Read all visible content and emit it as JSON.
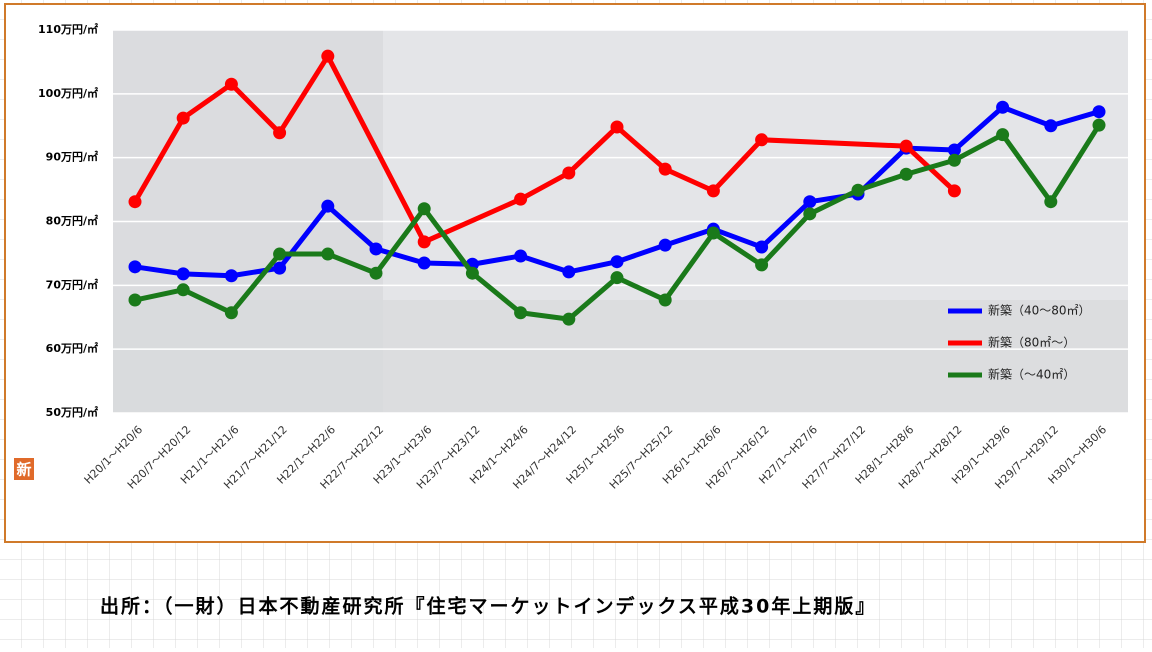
{
  "chart_data": {
    "type": "line",
    "categories": [
      "H20/1～H20/6",
      "H20/7～H20/12",
      "H21/1～H21/6",
      "H21/7～H21/12",
      "H22/1～H22/6",
      "H22/7～H22/12",
      "H23/1～H23/6",
      "H23/7～H23/12",
      "H24/1～H24/6",
      "H24/7～H24/12",
      "H25/1～H25/6",
      "H25/7～H25/12",
      "H26/1～H26/6",
      "H26/7～H26/12",
      "H27/1～H27/6",
      "H27/7～H27/12",
      "H28/1～H28/6",
      "H28/7～H28/12",
      "H29/1～H29/6",
      "H29/7～H29/12",
      "H30/1～H30/6"
    ],
    "series": [
      {
        "name": "新築（40～80㎡）",
        "color": "#0000ff",
        "values": [
          72.9,
          71.8,
          71.5,
          72.7,
          82.4,
          75.7,
          73.5,
          73.3,
          74.6,
          72.1,
          73.7,
          76.3,
          78.8,
          76.0,
          83.1,
          84.3,
          91.5,
          91.2,
          97.9,
          95.0,
          97.2
        ]
      },
      {
        "name": "新築（80㎡～）",
        "color": "#ff0000",
        "values": [
          83.1,
          96.2,
          101.5,
          93.9,
          105.9,
          null,
          76.8,
          null,
          83.5,
          87.6,
          94.8,
          88.2,
          84.8,
          92.8,
          null,
          null,
          91.8,
          84.8,
          null,
          null,
          null
        ]
      },
      {
        "name": "新築（～40㎡）",
        "color": "#1a7a1a",
        "values": [
          67.7,
          69.3,
          65.7,
          74.9,
          74.9,
          71.9,
          82.0,
          71.9,
          65.7,
          64.7,
          71.2,
          67.7,
          78.2,
          73.2,
          81.2,
          84.9,
          87.4,
          89.6,
          93.6,
          83.1,
          95.1
        ]
      }
    ],
    "ylim": [
      50,
      110
    ],
    "yticks": [
      {
        "value": 50,
        "label": "50万円/㎡"
      },
      {
        "value": 60,
        "label": "60万円/㎡"
      },
      {
        "value": 70,
        "label": "70万円/㎡"
      },
      {
        "value": 80,
        "label": "80万円/㎡"
      },
      {
        "value": 90,
        "label": "90万円/㎡"
      },
      {
        "value": 100,
        "label": "100万円/㎡"
      },
      {
        "value": 110,
        "label": "110万円/㎡"
      }
    ],
    "grid": true,
    "connect_gaps": true,
    "legend": "right"
  },
  "badge": "新",
  "source": "出所：（一財）日本不動産研究所『住宅マーケットインデックス平成30年上期版』"
}
